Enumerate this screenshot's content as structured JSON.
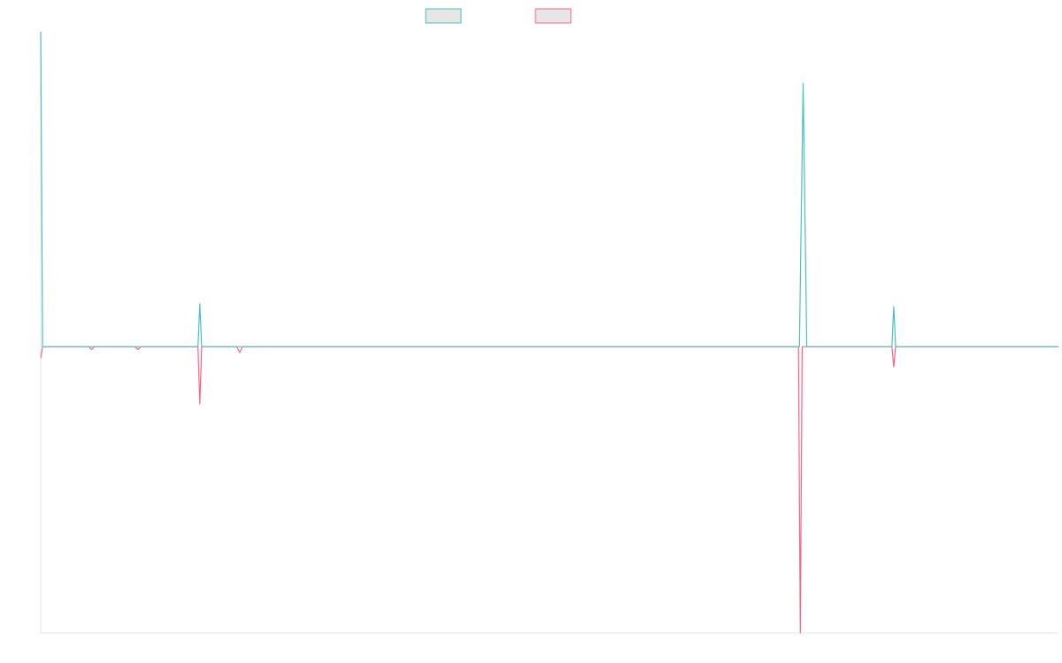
{
  "chart_data": {
    "type": "line",
    "title": "",
    "xlabel": "",
    "ylabel": "",
    "legend": {
      "placement": "top-center"
    },
    "grid": false,
    "x_domain": [
      0,
      1100
    ],
    "ylim": [
      -1,
      1.1
    ],
    "series": [
      {
        "name": "",
        "color": "#4bc0c0",
        "fill": "#e6e6e6",
        "points": [
          [
            0,
            1.1
          ],
          [
            2,
            0
          ],
          [
            55,
            0
          ],
          [
            105,
            0
          ],
          [
            170,
            0
          ],
          [
            172,
            0.15
          ],
          [
            174,
            0
          ],
          [
            215,
            0
          ],
          [
            820,
            0
          ],
          [
            824,
            0.92
          ],
          [
            828,
            0
          ],
          [
            920,
            0
          ],
          [
            922,
            0.14
          ],
          [
            924,
            0
          ],
          [
            1100,
            0
          ]
        ]
      },
      {
        "name": "",
        "color": "#ff6384",
        "fill": "#e6e6e6",
        "points": [
          [
            0,
            -0.04
          ],
          [
            2,
            0
          ],
          [
            52,
            0
          ],
          [
            55,
            -0.01
          ],
          [
            58,
            0
          ],
          [
            102,
            0
          ],
          [
            105,
            -0.01
          ],
          [
            108,
            0
          ],
          [
            170,
            0
          ],
          [
            172,
            -0.2
          ],
          [
            174,
            0
          ],
          [
            212,
            0
          ],
          [
            215,
            -0.02
          ],
          [
            218,
            0
          ],
          [
            819,
            0
          ],
          [
            821,
            -1
          ],
          [
            823,
            0
          ],
          [
            920,
            0
          ],
          [
            922,
            -0.07
          ],
          [
            924,
            0
          ],
          [
            1100,
            0
          ]
        ]
      }
    ]
  }
}
